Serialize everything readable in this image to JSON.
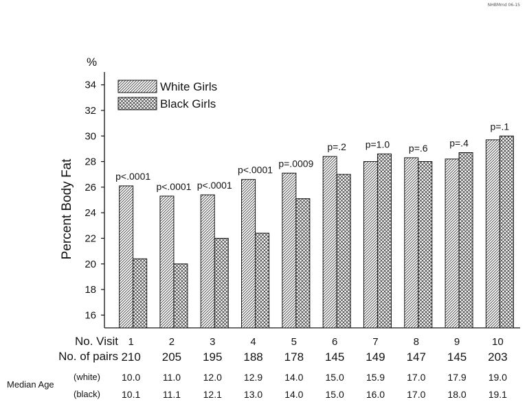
{
  "figure_ref": "NHBMmd 06-15",
  "colors": {
    "white_series": "#ffffff",
    "black_series": "#ffffff",
    "ink": "#111111",
    "background": "#ffffff"
  },
  "chart_data": {
    "type": "bar",
    "title": "",
    "xlabel": "",
    "ylabel": "Percent Body Fat",
    "y_unit": "%",
    "ylim": [
      15,
      35
    ],
    "yticks": [
      16,
      18,
      20,
      22,
      24,
      26,
      28,
      30,
      32,
      34
    ],
    "grid": false,
    "legend_placement": "top-left",
    "categories": [
      "1",
      "2",
      "3",
      "4",
      "5",
      "6",
      "7",
      "8",
      "9",
      "10"
    ],
    "series": [
      {
        "name": "White Girls",
        "pattern": "diagonal-hatch",
        "values": [
          26.1,
          25.3,
          25.4,
          26.6,
          27.1,
          28.4,
          28.0,
          28.3,
          28.2,
          29.7
        ]
      },
      {
        "name": "Black Girls",
        "pattern": "cross-hatch",
        "values": [
          20.4,
          20.0,
          22.0,
          22.4,
          25.1,
          27.0,
          28.6,
          28.0,
          28.7,
          30.0
        ]
      }
    ],
    "p_values": [
      "p<.0001",
      "p<.0001",
      "p<.0001",
      "p<.0001",
      "p=.0009",
      "p=.2",
      "p=1.0",
      "p=.6",
      "p=.4",
      "p=.1"
    ],
    "table": {
      "visit_label": "No. Visit",
      "pairs_label": "No. of pairs",
      "pairs": [
        "210",
        "205",
        "195",
        "188",
        "178",
        "145",
        "149",
        "147",
        "145",
        "203"
      ],
      "median_age_label": "Median Age",
      "white_label": "(white)",
      "black_label": "(black)",
      "median_age_white": [
        "10.0",
        "11.0",
        "12.0",
        "12.9",
        "14.0",
        "15.0",
        "15.9",
        "17.0",
        "17.9",
        "19.0"
      ],
      "median_age_black": [
        "10.1",
        "11.1",
        "12.1",
        "13.0",
        "14.0",
        "15.0",
        "16.0",
        "17.0",
        "18.0",
        "19.1"
      ]
    }
  }
}
